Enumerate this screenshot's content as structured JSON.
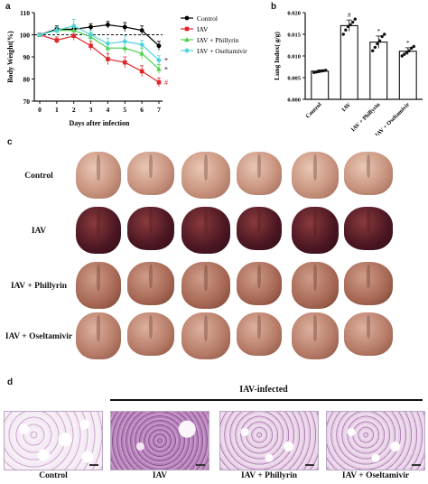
{
  "panels": {
    "a": "a",
    "b": "b",
    "c": "c",
    "d": "d"
  },
  "chart_data": [
    {
      "type": "line",
      "panel": "a",
      "xlabel": "Days after infection",
      "ylabel": "Body Weight(%)",
      "x": [
        0,
        1,
        2,
        3,
        4,
        5,
        6,
        7
      ],
      "xticks": [
        "0",
        "1",
        "2",
        "3",
        "4",
        "5",
        "6",
        "7"
      ],
      "yticks": [
        "70",
        "80",
        "90",
        "100",
        "110"
      ],
      "ylim": [
        70,
        110
      ],
      "reference_line": 100,
      "series": [
        {
          "name": "Control",
          "color": "#000000",
          "marker": "circle",
          "values": [
            100,
            102.5,
            102.5,
            103.5,
            104.5,
            103.5,
            102,
            95
          ],
          "errors": [
            0.5,
            1.5,
            1.5,
            1.5,
            1.5,
            2,
            2,
            2
          ]
        },
        {
          "name": "IAV",
          "color": "#e0262b",
          "marker": "square",
          "values": [
            100,
            97.5,
            99.5,
            95,
            89,
            87.5,
            83.5,
            78.5
          ],
          "errors": [
            0.5,
            1.5,
            2,
            2,
            2.5,
            2.5,
            2.5,
            2
          ]
        },
        {
          "name": "IAV + Phillyrin",
          "color": "#4ccf4c",
          "marker": "triangle",
          "values": [
            100,
            102,
            102,
            99,
            94,
            94,
            91.5,
            84.5
          ],
          "errors": [
            0.5,
            1.5,
            1.5,
            2,
            2.5,
            2.5,
            2.5,
            2
          ]
        },
        {
          "name": "IAV + Oseltamivir",
          "color": "#4fd3d8",
          "marker": "diamond",
          "values": [
            100,
            102,
            104,
            100,
            96,
            97,
            95.5,
            88.5
          ],
          "errors": [
            0.5,
            1.5,
            3,
            2,
            2.5,
            2.5,
            2,
            2
          ]
        }
      ],
      "annotations": [
        {
          "text": "*",
          "series": "IAV + Oseltamivir",
          "color": "#111111"
        },
        {
          "text": "*",
          "series": "IAV + Phillyrin",
          "color": "#111111"
        },
        {
          "text": "#",
          "series": "IAV",
          "color": "#e0262b"
        }
      ],
      "legend": "top-right"
    },
    {
      "type": "bar",
      "panel": "b",
      "ylabel": "Lung Index( g/g)",
      "categories": [
        "Control",
        "IAV",
        "IAV + Phillyrin",
        "IAV + Oseltamivir"
      ],
      "values": [
        0.0065,
        0.017,
        0.0132,
        0.0111
      ],
      "errors": [
        0.0003,
        0.0013,
        0.0014,
        0.0008
      ],
      "points": [
        [
          0.0062,
          0.0063,
          0.0064,
          0.0065,
          0.0066,
          0.0067
        ],
        [
          0.015,
          0.016,
          0.0168,
          0.0172,
          0.0178,
          0.0185
        ],
        [
          0.0112,
          0.012,
          0.0128,
          0.0135,
          0.0145,
          0.015
        ],
        [
          0.01,
          0.0104,
          0.0108,
          0.0112,
          0.0118,
          0.0122
        ]
      ],
      "significance": [
        "",
        "#",
        "*",
        "*"
      ],
      "ylim": [
        0,
        0.02
      ],
      "yticks": [
        "0.000",
        "0.005",
        "0.010",
        "0.015",
        "0.020"
      ]
    }
  ],
  "lungs": {
    "rows": [
      {
        "label": "Control",
        "style": "control"
      },
      {
        "label": "IAV",
        "style": "iav"
      },
      {
        "label": "IAV + Phillyrin",
        "style": "phil"
      },
      {
        "label": "IAV + Oseltamivir",
        "style": "osel"
      }
    ]
  },
  "histology": {
    "group_label": "IAV-infected",
    "panels": [
      {
        "label": "Control",
        "style": "light"
      },
      {
        "label": "IAV",
        "style": "dense"
      },
      {
        "label": "IAV + Phillyrin",
        "style": "mid"
      },
      {
        "label": "IAV + Oseltamivir",
        "style": "mid"
      }
    ]
  }
}
